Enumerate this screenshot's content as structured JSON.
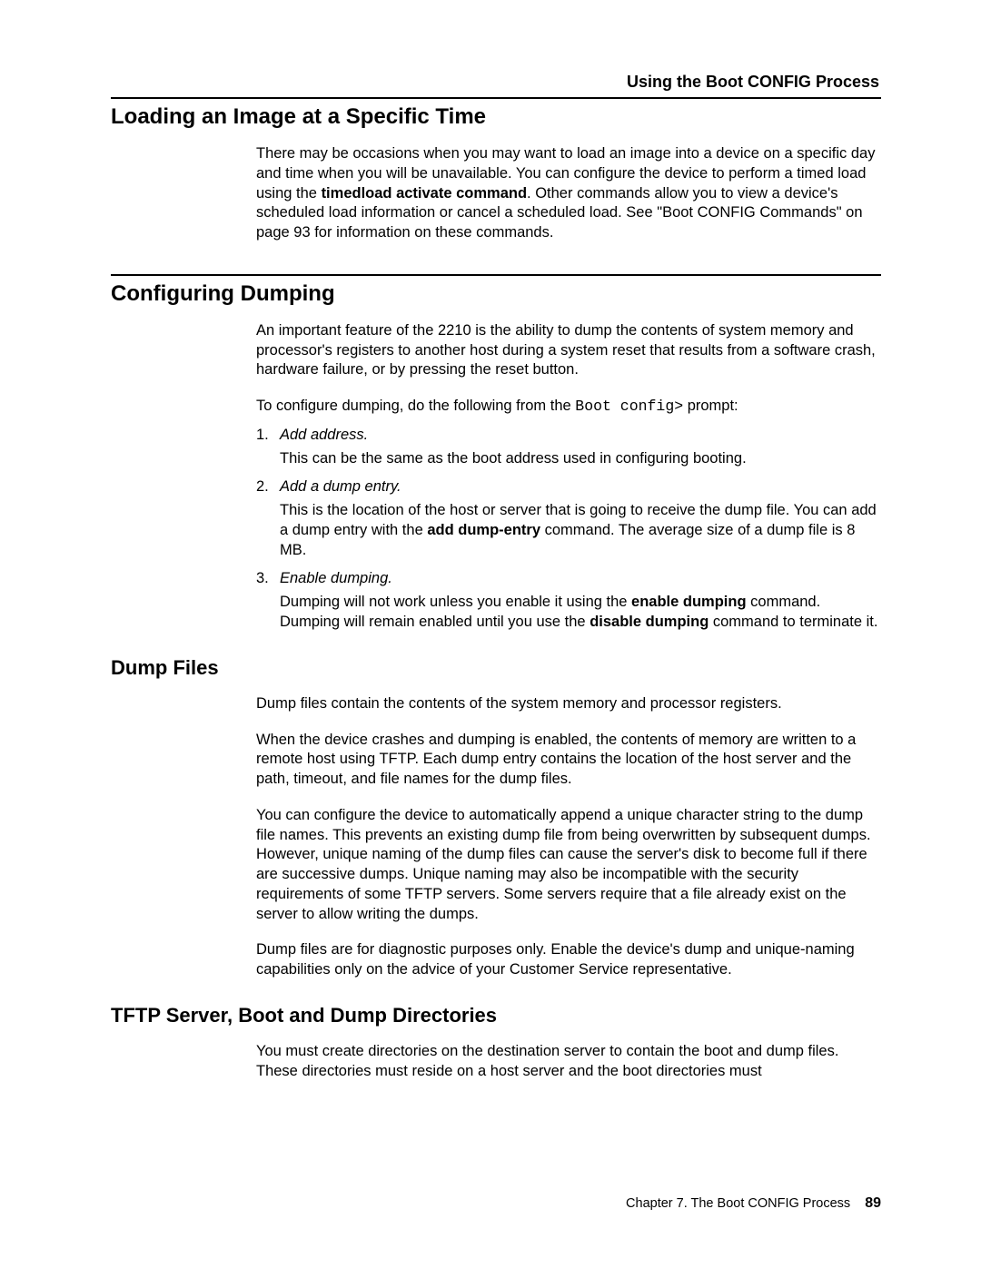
{
  "running_head": "Using the Boot CONFIG Process",
  "section1": {
    "title": "Loading an Image at a Specific Time",
    "p1a": "There may be occasions when you may want to load an image into a device on a specific day and time when you will be unavailable. You can configure the device to perform a timed load using the ",
    "p1_cmd": "timedload activate command",
    "p1b": ". Other commands allow you to view a device's scheduled load information or cancel a scheduled load. See \"Boot CONFIG Commands\" on page 93  for information on these commands."
  },
  "section2": {
    "title": "Configuring Dumping",
    "p1": "An important feature of the 2210 is the ability to dump the contents of system memory and processor's registers to another host during a system reset that results from a software crash, hardware failure, or by pressing the reset button.",
    "p2a": "To configure dumping, do the following from the ",
    "p2_mono": "Boot config>",
    "p2b": " prompt:",
    "steps": [
      {
        "num": "1.",
        "title": "Add address.",
        "body": "This can be the same as the boot address used in configuring booting."
      },
      {
        "num": "2.",
        "title": "Add a dump entry.",
        "body_a": "This is the location of the host or server that is going to receive the dump file. You can add a dump entry with the ",
        "body_cmd": "add dump-entry",
        "body_b": " command. The average size of a dump file is 8 MB."
      },
      {
        "num": "3.",
        "title": "Enable dumping.",
        "body_a": "Dumping will not work unless you enable it using the ",
        "body_cmd1": "enable dumping",
        "body_b": " command. Dumping will remain enabled until you use the ",
        "body_cmd2": "disable dumping",
        "body_c": " command to terminate it."
      }
    ]
  },
  "section3": {
    "title": "Dump Files",
    "p1": "Dump files contain the contents of the system memory and processor registers.",
    "p2": "When the device crashes and dumping is enabled, the contents of memory are written to a remote host using TFTP. Each dump entry contains the location of the host server and the path, timeout, and file names for the dump files.",
    "p3": "You can configure the device to automatically append a unique character string to the dump file names. This prevents an existing dump file from being overwritten by subsequent dumps. However, unique naming of the dump files can cause the server's disk to become full if there are successive dumps. Unique naming may also be incompatible with the security requirements of some TFTP servers. Some servers require that a file already exist on the server to allow writing the dumps.",
    "p4": "Dump files are for diagnostic purposes only. Enable the device's dump and unique-naming capabilities only on the advice of your Customer Service representative."
  },
  "section4": {
    "title": "TFTP Server, Boot and Dump Directories",
    "p1": "You must create directories on the destination server to contain the boot and dump files. These directories must reside on a host server and the boot directories must"
  },
  "footer": {
    "chapter": "Chapter 7. The Boot CONFIG Process",
    "page": "89"
  }
}
